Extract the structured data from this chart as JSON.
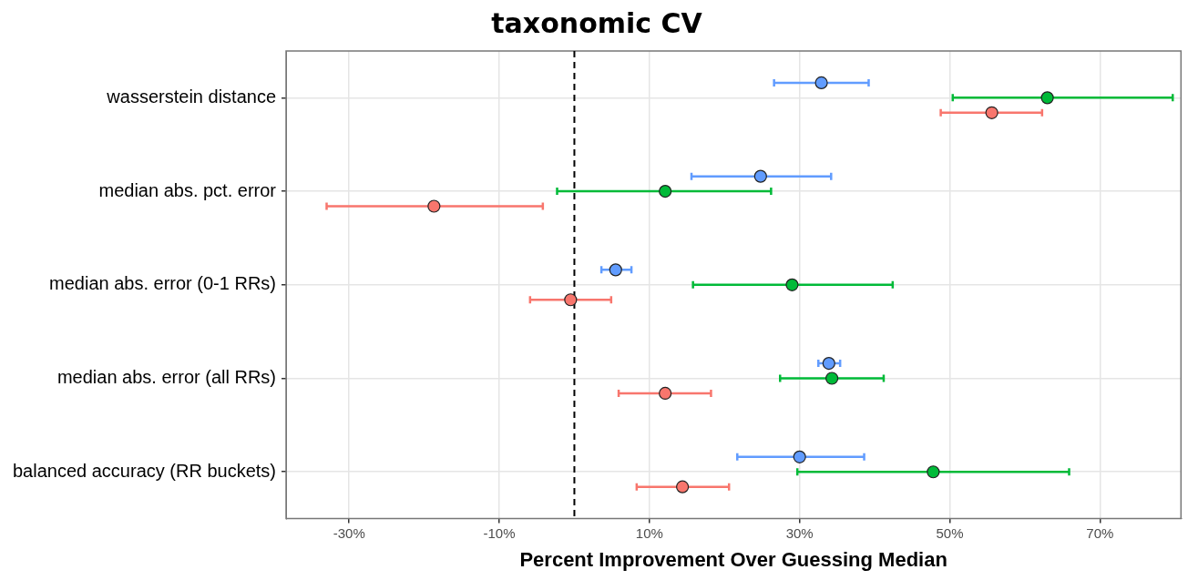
{
  "chart_data": {
    "type": "scatter",
    "orientation": "horizontal",
    "title": "taxonomic CV",
    "xlabel": "Percent Improvement Over Guessing Median",
    "categories": [
      "wasserstein distance",
      "median abs. pct. error",
      "median abs. error (0-1 RRs)",
      "median abs. error (all RRs)",
      "balanced accuracy (RR buckets)"
    ],
    "series": [
      {
        "color": "#f8766d",
        "values": [
          55.6,
          -18.7,
          -0.5,
          12.1,
          14.4
        ],
        "errors": [
          [
            48.8,
            62.3
          ],
          [
            -33.0,
            -4.2
          ],
          [
            -5.9,
            4.9
          ],
          [
            5.9,
            18.2
          ],
          [
            8.3,
            20.6
          ]
        ]
      },
      {
        "color": "#00ba38",
        "values": [
          63.0,
          12.1,
          29.0,
          34.3,
          47.8
        ],
        "errors": [
          [
            50.4,
            79.7
          ],
          [
            -2.3,
            26.2
          ],
          [
            15.8,
            42.4
          ],
          [
            27.4,
            41.2
          ],
          [
            29.7,
            65.9
          ]
        ]
      },
      {
        "color": "#619cff",
        "values": [
          32.9,
          24.8,
          5.5,
          33.9,
          30.0
        ],
        "errors": [
          [
            26.6,
            39.2
          ],
          [
            15.6,
            34.2
          ],
          [
            3.6,
            7.6
          ],
          [
            32.5,
            35.4
          ],
          [
            21.7,
            38.6
          ]
        ]
      }
    ],
    "xlim": [
      -38.4,
      80.8
    ],
    "xticks": [
      {
        "value": -30,
        "label": "-30%"
      },
      {
        "value": -10,
        "label": "-10%"
      },
      {
        "value": 10,
        "label": "10%"
      },
      {
        "value": 30,
        "label": "30%"
      },
      {
        "value": 50,
        "label": "50%"
      },
      {
        "value": 70,
        "label": "70%"
      }
    ],
    "ref_lines": [
      {
        "axis": "x",
        "value": 0,
        "line_style": "dashed",
        "color": "#000000"
      }
    ],
    "grid": true,
    "marker": "circle",
    "legend": false
  }
}
